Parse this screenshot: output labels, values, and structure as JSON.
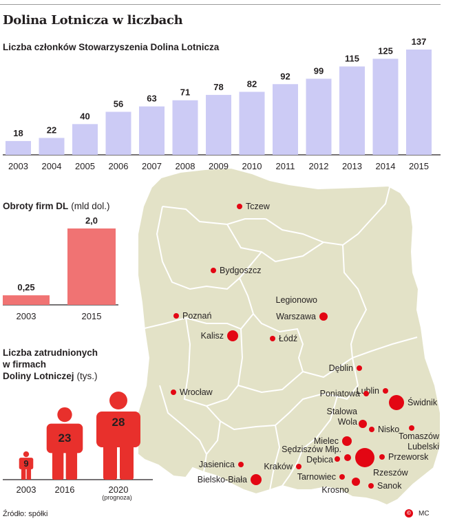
{
  "header": {
    "title": "Dolina Lotnicza w liczbach",
    "source": "Źródło: spółki",
    "credit": "MC"
  },
  "chart_data": [
    {
      "type": "bar",
      "title": "Liczba członków Stowarzyszenia Dolina Lotnicza",
      "categories": [
        "2003",
        "2004",
        "2005",
        "2006",
        "2007",
        "2008",
        "2009",
        "2010",
        "2011",
        "2012",
        "2013",
        "2014",
        "2015"
      ],
      "values": [
        18,
        22,
        40,
        56,
        63,
        71,
        78,
        82,
        92,
        99,
        115,
        125,
        137
      ],
      "color": "#cccbf5"
    },
    {
      "type": "bar",
      "title": "Obroty firm DL",
      "unit": "(mld dol.)",
      "categories": [
        "2003",
        "2015"
      ],
      "values": [
        0.25,
        2.0
      ],
      "value_labels": [
        "0,25",
        "2,0"
      ],
      "color": "#f07373"
    },
    {
      "type": "bar",
      "title": "Liczba zatrudnionych w firmach Doliny Lotniczej",
      "title_lines": [
        "Liczba zatrudnionych",
        "w firmach",
        "Doliny Lotniczej"
      ],
      "unit": "(tys.)",
      "categories": [
        "2003",
        "2016",
        "2020"
      ],
      "category_notes": [
        "",
        "",
        "(prognoza)"
      ],
      "values": [
        9,
        23,
        28
      ],
      "color": "#e8302c"
    }
  ],
  "map": {
    "fill": "#e3e2c7",
    "dot_color": "#e30613",
    "cities": [
      {
        "name": "Tczew",
        "size": "small"
      },
      {
        "name": "Bydgoszcz",
        "size": "small"
      },
      {
        "name": "Legionowo",
        "size": "small"
      },
      {
        "name": "Warszawa",
        "size": "medium"
      },
      {
        "name": "Poznań",
        "size": "small"
      },
      {
        "name": "Kalisz",
        "size": "medium"
      },
      {
        "name": "Łódź",
        "size": "small"
      },
      {
        "name": "Dęblin",
        "size": "small"
      },
      {
        "name": "Lublin",
        "size": "small"
      },
      {
        "name": "Poniatowa",
        "size": "small"
      },
      {
        "name": "Świdnik",
        "size": "large"
      },
      {
        "name": "Wrocław",
        "size": "small"
      },
      {
        "name": "Stalowa Wola",
        "lines": [
          "Stalowa",
          "Wola"
        ],
        "size": "medium"
      },
      {
        "name": "Nisko",
        "size": "small"
      },
      {
        "name": "Tomaszów Lubelski",
        "lines": [
          "Tomaszów",
          "Lubelski"
        ],
        "size": "small"
      },
      {
        "name": "Mielec",
        "size": "medium"
      },
      {
        "name": "Sędziszów Młp.",
        "size": "small"
      },
      {
        "name": "Dębica",
        "size": "small"
      },
      {
        "name": "Przeworsk",
        "size": "small"
      },
      {
        "name": "Rzeszów",
        "size": "large"
      },
      {
        "name": "Jasienica",
        "size": "small"
      },
      {
        "name": "Kraków",
        "size": "small"
      },
      {
        "name": "Tarnowiec",
        "size": "small"
      },
      {
        "name": "Krosno",
        "size": "medium"
      },
      {
        "name": "Sanok",
        "size": "small"
      },
      {
        "name": "Bielsko-Biała",
        "size": "medium"
      }
    ]
  }
}
